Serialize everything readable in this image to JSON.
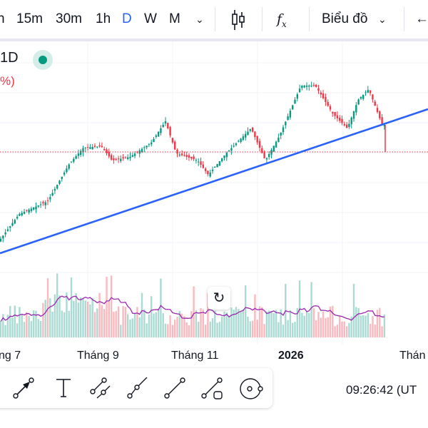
{
  "toolbar": {
    "intervals": [
      "h",
      "15m",
      "30m",
      "1h",
      "D",
      "W",
      "M"
    ],
    "active_interval": "D",
    "chart_type_icon": "candles-icon",
    "indicators_icon": "fx-icon",
    "chart_menu": "Biểu đồ",
    "back_icon": "arrow-left-icon"
  },
  "legend": {
    "interval": "1D",
    "change": "%)",
    "status_color": "#089981"
  },
  "time_axis": [
    "ng 7",
    "Tháng 9",
    "Tháng 11",
    "2026",
    "Thán"
  ],
  "drawing_tools": [
    "arrow-tool",
    "text-tool",
    "parallel-channel-tool",
    "extended-line-tool",
    "trend-line-tool",
    "trend-line-with-box-tool",
    "circle-tool"
  ],
  "clock": "09:26:42 (UT",
  "colors": {
    "up": "#089981",
    "down": "#f23645",
    "trendline": "#2962ff",
    "volume_ma": "#9c27b0",
    "active": "#2962ff"
  }
}
